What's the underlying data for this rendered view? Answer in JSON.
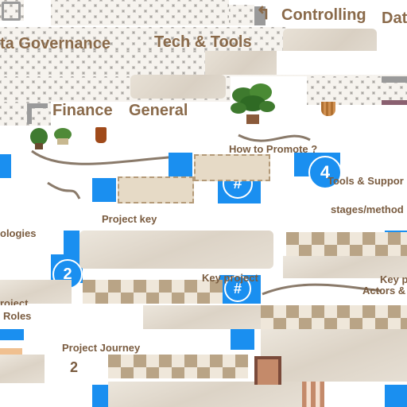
{
  "labels": {
    "controlling": "Controlling",
    "data_cut": "Dat",
    "data_governance": "ta Governance",
    "tech_tools": "Tech & Tools",
    "finance": "Finance",
    "general": "General",
    "how_to_promote": "How to Promote ?",
    "tools_support": "Tools & Suppor",
    "stages_methods": "stages/method",
    "project_key": "Project key",
    "methodologies_cut": "ologies",
    "key_project": "Key project",
    "key_p_cut": "Key p",
    "actors_cut": "Actors &",
    "project_cut": "roject",
    "roles": "Roles",
    "project_journey": "Project Journey",
    "number_two": "2"
  },
  "badges": {
    "hash_one": "#",
    "hash_two": "#",
    "hash_three": "#",
    "num_four": "4",
    "num_two": "2"
  },
  "icons": {
    "back_arrow": "↰"
  },
  "colors": {
    "accent_blue": "#1a8ff0",
    "label_brown": "#8a6a4a",
    "lattice_grey": "#a9a6a1"
  }
}
